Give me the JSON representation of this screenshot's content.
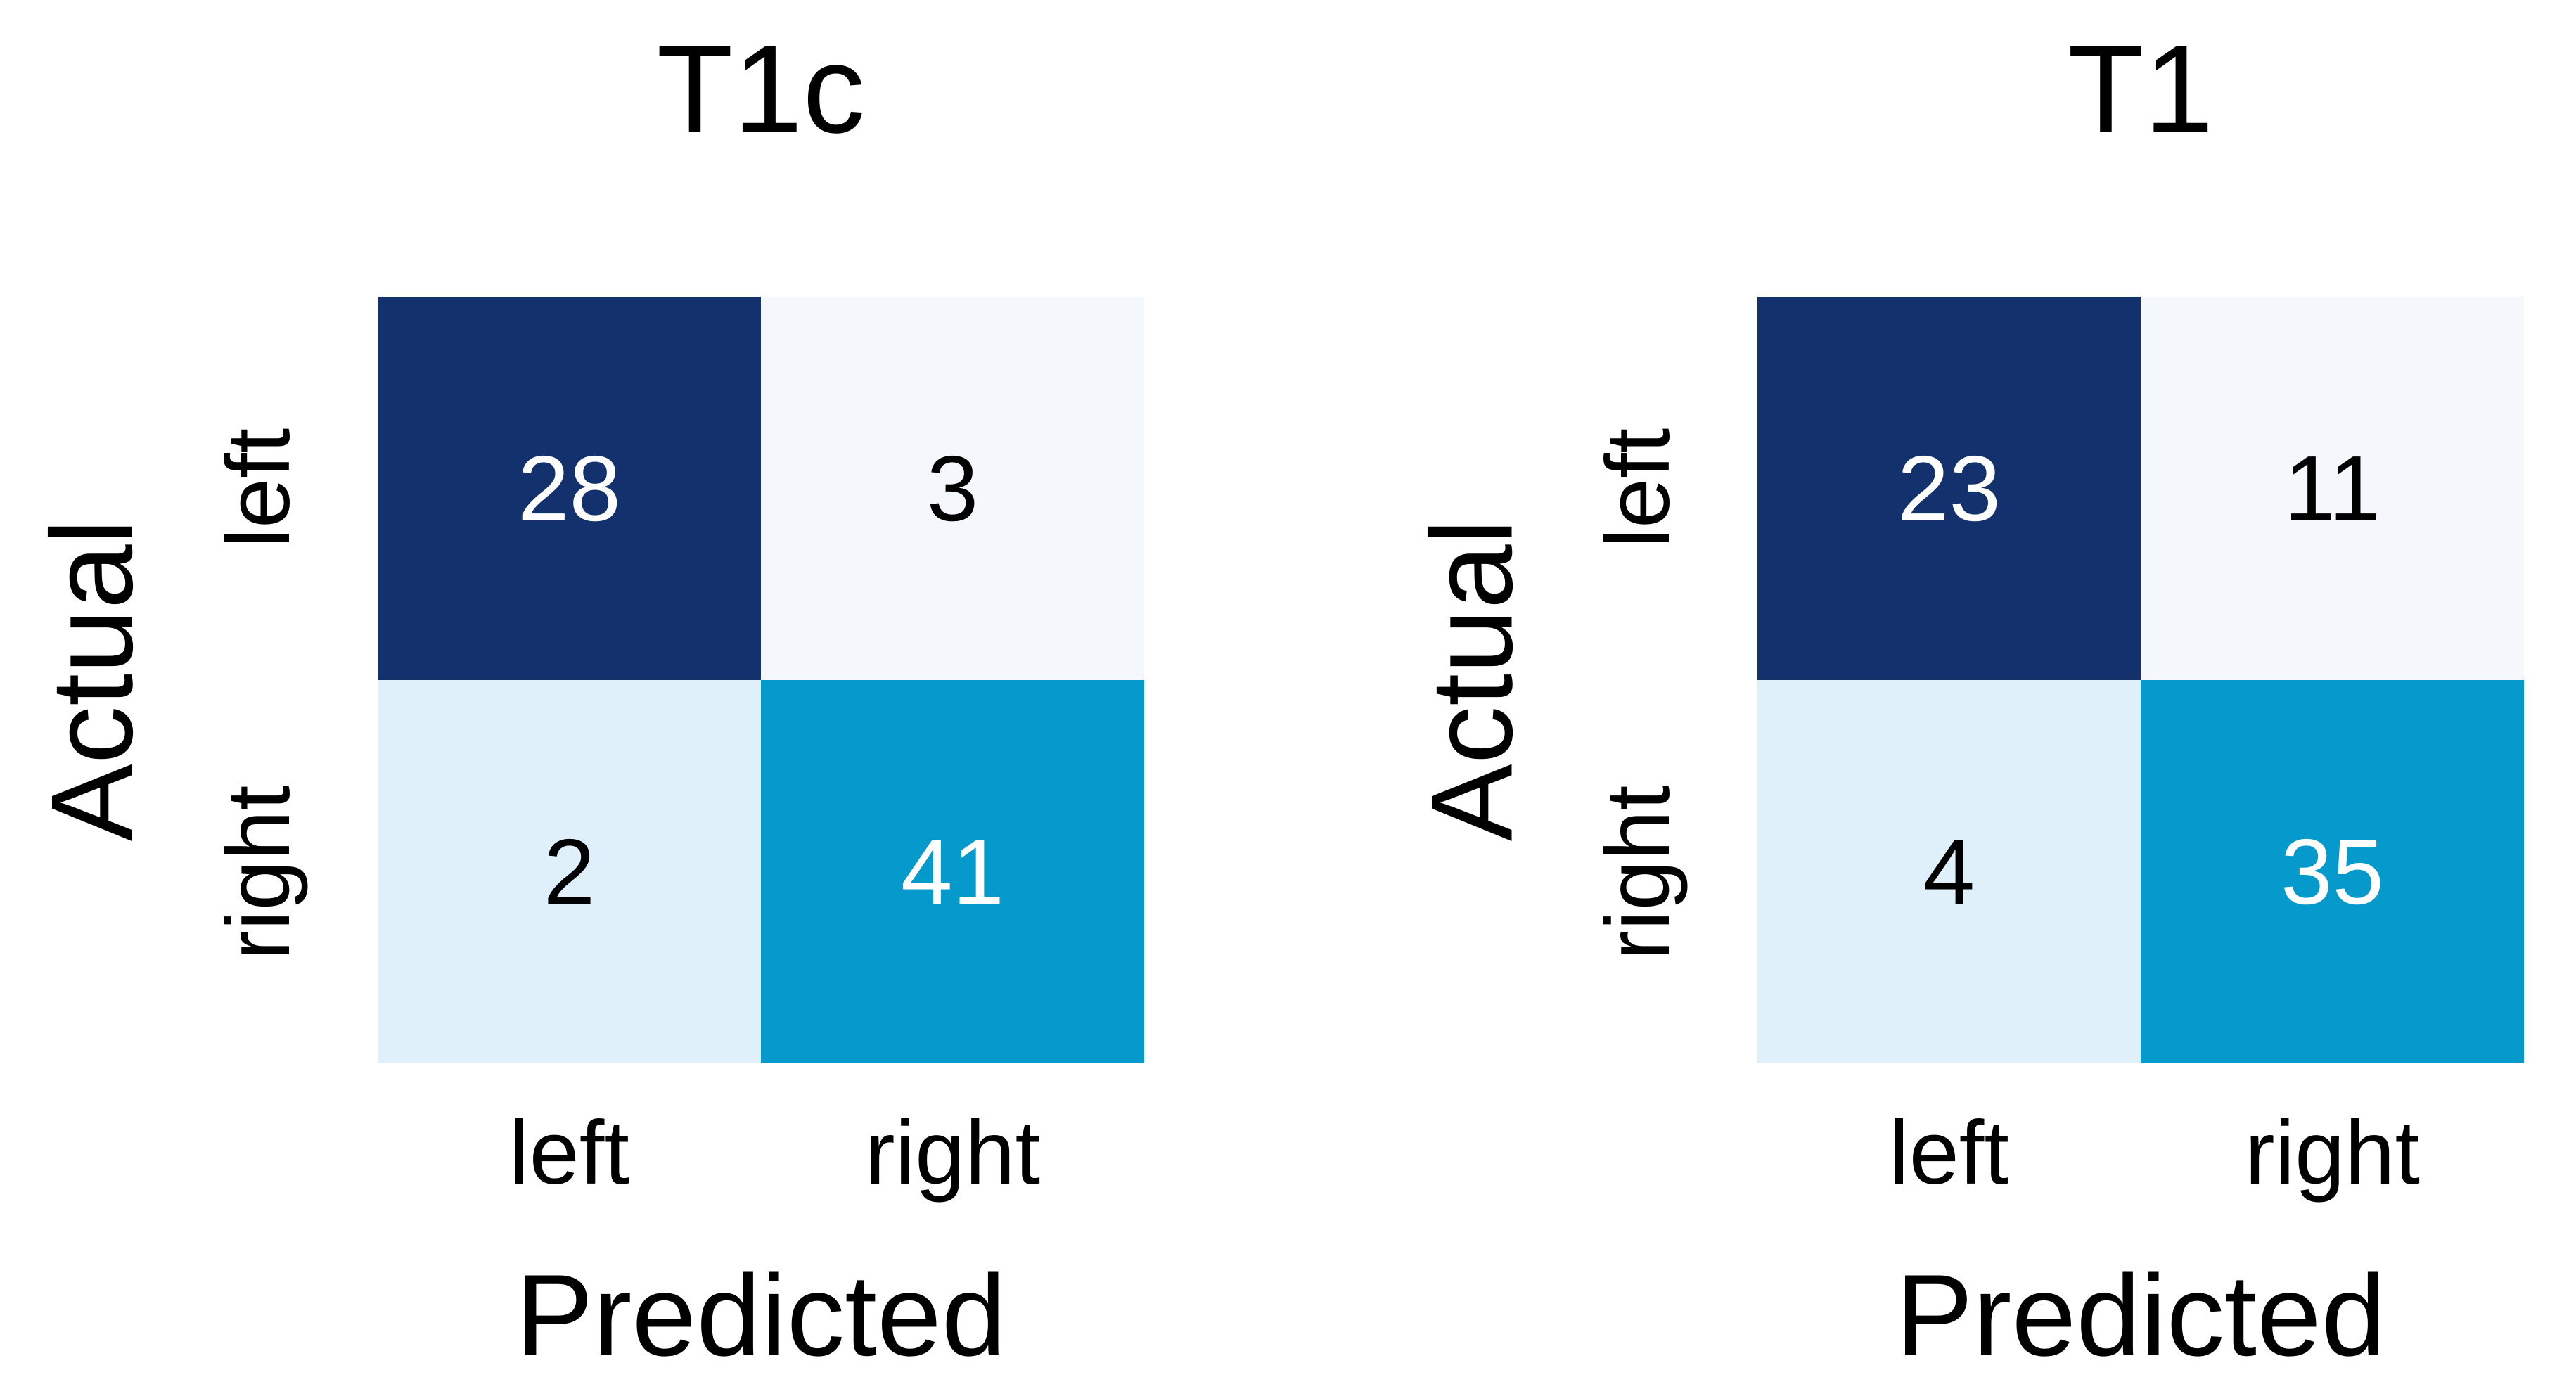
{
  "figures": [
    {
      "title": "T1c",
      "x_axis_label": "Predicted",
      "y_axis_label": "Actual",
      "x_tick_labels": [
        "left",
        "right"
      ],
      "y_tick_labels": [
        "left",
        "right"
      ],
      "cells": [
        [
          {
            "value": "28",
            "bg": "#12316D",
            "fg": "#FFFFFF"
          },
          {
            "value": "3",
            "bg": "#F4F8FC",
            "fg": "#000000"
          }
        ],
        [
          {
            "value": "2",
            "bg": "#DFF0FA",
            "fg": "#000000"
          },
          {
            "value": "41",
            "bg": "#0699CB",
            "fg": "#FFFFFF"
          }
        ]
      ]
    },
    {
      "title": "T1",
      "x_axis_label": "Predicted",
      "y_axis_label": "Actual",
      "x_tick_labels": [
        "left",
        "right"
      ],
      "y_tick_labels": [
        "left",
        "right"
      ],
      "cells": [
        [
          {
            "value": "23",
            "bg": "#12316D",
            "fg": "#FFFFFF"
          },
          {
            "value": "11",
            "bg": "#F4F8FC",
            "fg": "#000000"
          }
        ],
        [
          {
            "value": "4",
            "bg": "#DFF0FA",
            "fg": "#000000"
          },
          {
            "value": "35",
            "bg": "#0699CB",
            "fg": "#FFFFFF"
          }
        ]
      ]
    }
  ],
  "colors": {
    "background": "#FFFFFF",
    "cell_dark_navy": "#12316D",
    "cell_cyan": "#0699CB",
    "cell_light_blue": "#DFF0FA",
    "cell_pale": "#F4F8FC",
    "text_dark": "#000000",
    "text_light": "#FFFFFF"
  },
  "chart_data": [
    {
      "type": "heatmap",
      "title": "T1c",
      "xlabel": "Predicted",
      "ylabel": "Actual",
      "x_categories": [
        "left",
        "right"
      ],
      "y_categories": [
        "left",
        "right"
      ],
      "values": [
        [
          28,
          3
        ],
        [
          2,
          41
        ]
      ],
      "cell_colors": [
        [
          "#12316D",
          "#F4F8FC"
        ],
        [
          "#DFF0FA",
          "#0699CB"
        ]
      ],
      "annotations": [
        [
          "28",
          "3"
        ],
        [
          "2",
          "41"
        ]
      ],
      "legend": false,
      "grid": false
    },
    {
      "type": "heatmap",
      "title": "T1",
      "xlabel": "Predicted",
      "ylabel": "Actual",
      "x_categories": [
        "left",
        "right"
      ],
      "y_categories": [
        "left",
        "right"
      ],
      "values": [
        [
          23,
          11
        ],
        [
          4,
          35
        ]
      ],
      "cell_colors": [
        [
          "#12316D",
          "#F4F8FC"
        ],
        [
          "#DFF0FA",
          "#0699CB"
        ]
      ],
      "annotations": [
        [
          "23",
          "11"
        ],
        [
          "4",
          "35"
        ]
      ],
      "legend": false,
      "grid": false
    }
  ]
}
